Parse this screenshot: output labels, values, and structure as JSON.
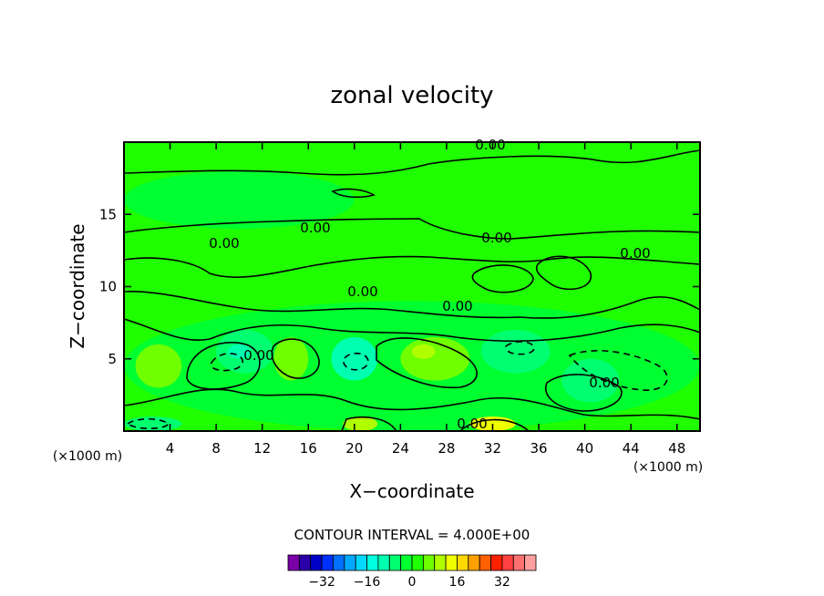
{
  "chart_data": {
    "type": "heatmap",
    "title": "zonal velocity",
    "xlabel": "X−coordinate",
    "ylabel": "Z−coordinate",
    "x_unit_left": "(×1000 m)",
    "x_unit_right": "(×1000 m)",
    "xlim": [
      0,
      50
    ],
    "ylim": [
      0,
      20
    ],
    "x_ticks": [
      4,
      8,
      12,
      16,
      20,
      24,
      28,
      32,
      36,
      40,
      44,
      48
    ],
    "y_ticks": [
      5,
      10,
      15
    ],
    "contour_interval_text": "CONTOUR INTERVAL = 4.000E+00",
    "contour_labels": [
      "0.00",
      "0.00",
      "0.00",
      "0.00",
      "0.00",
      "0.00",
      "0.00",
      "0.00",
      "0.00",
      "0.00"
    ],
    "colorbar": {
      "colors": [
        "#7a00a8",
        "#2a00a8",
        "#0000c8",
        "#0030ff",
        "#0070ff",
        "#00a8ff",
        "#00d8ff",
        "#00ffe0",
        "#00ffb0",
        "#00ff70",
        "#00ff30",
        "#20ff00",
        "#70ff00",
        "#b0ff00",
        "#f0ff00",
        "#ffd800",
        "#ffa000",
        "#ff6000",
        "#ff2000",
        "#ff4040",
        "#ff7070",
        "#ffa0a0"
      ],
      "tick_labels": [
        "−32",
        "−16",
        "0",
        "16",
        "32"
      ],
      "tick_values": [
        -32,
        -16,
        0,
        16,
        32
      ]
    },
    "field_regions": [
      {
        "x": 0,
        "y": 0,
        "w": 50,
        "h": 20,
        "value": 0
      },
      {
        "x": 0,
        "y": 0,
        "w": 50,
        "h": 9,
        "value": -2
      },
      {
        "x": 0,
        "y": 14,
        "w": 20,
        "h": 4,
        "value": -2
      },
      {
        "x": 8,
        "y": 4,
        "w": 5,
        "h": 3,
        "value": -8
      },
      {
        "x": 9,
        "y": 5,
        "w": 2,
        "h": 1,
        "value": -12
      },
      {
        "x": 18,
        "y": 3.5,
        "w": 4,
        "h": 3,
        "value": -10
      },
      {
        "x": 31,
        "y": 4,
        "w": 6,
        "h": 3,
        "value": -6
      },
      {
        "x": 24,
        "y": 3.5,
        "w": 6,
        "h": 3,
        "value": 4
      },
      {
        "x": 25,
        "y": 5,
        "w": 2,
        "h": 1,
        "value": 8
      },
      {
        "x": 13,
        "y": 3.5,
        "w": 3,
        "h": 3,
        "value": 4
      },
      {
        "x": 1,
        "y": 3,
        "w": 4,
        "h": 3,
        "value": 4
      },
      {
        "x": 38,
        "y": 2,
        "w": 5,
        "h": 3,
        "value": -6
      },
      {
        "x": 44,
        "y": 3,
        "w": 4,
        "h": 3,
        "value": -4
      },
      {
        "x": 0,
        "y": 0,
        "w": 5,
        "h": 1,
        "value": -8
      },
      {
        "x": 19,
        "y": 0,
        "w": 3,
        "h": 1,
        "value": 10
      },
      {
        "x": 30,
        "y": 0,
        "w": 4,
        "h": 1,
        "value": 12
      }
    ]
  }
}
